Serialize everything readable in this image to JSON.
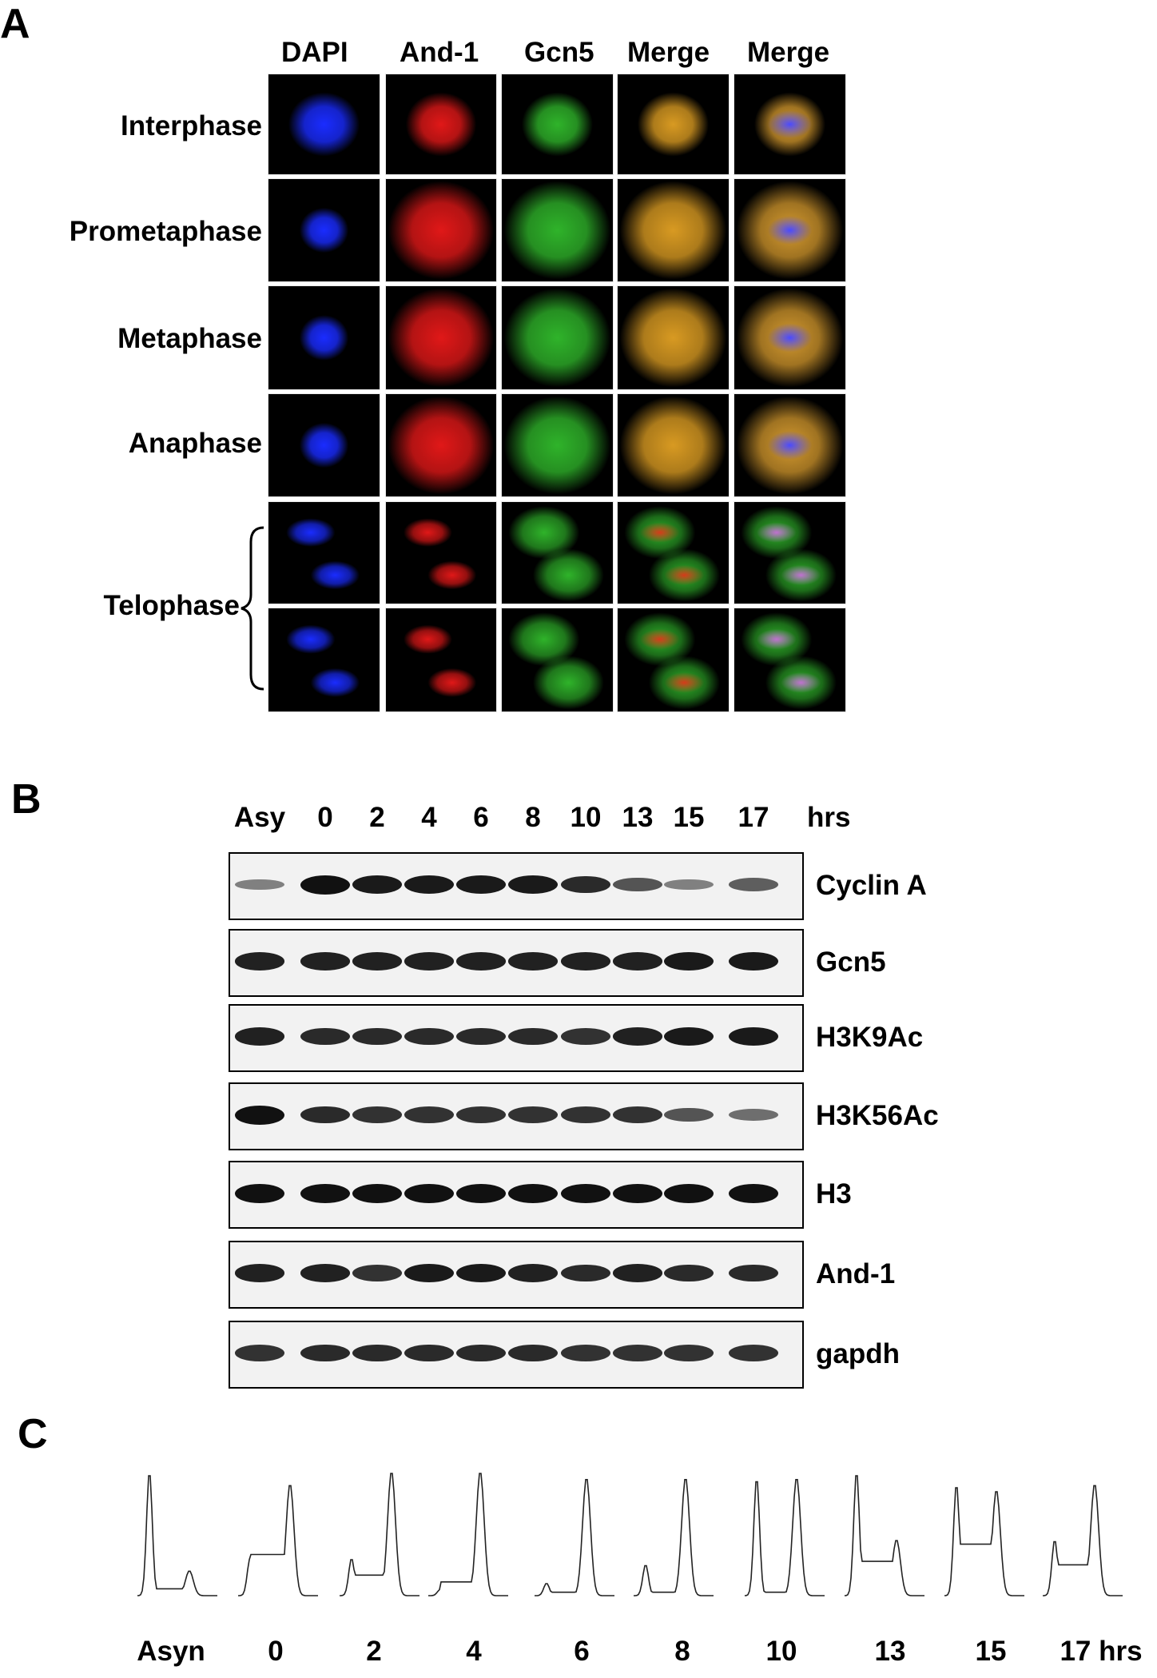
{
  "panels": {
    "a": "A",
    "b": "B",
    "c": "C"
  },
  "panel_a": {
    "columns": [
      "DAPI",
      "And-1",
      "Gcn5",
      "Merge",
      "Merge"
    ],
    "rows": [
      "Interphase",
      "Prometaphase",
      "Metaphase",
      "Anaphase"
    ],
    "telophase_label": "Telophase",
    "channel_colors": {
      "dapi": "#1a2cff",
      "and1": "#e01818",
      "gcn5": "#2fb32a",
      "merge": "#d89a22",
      "merge_dapi": "#b890d8"
    }
  },
  "panel_b": {
    "timepoints": [
      "Asy",
      "0",
      "2",
      "4",
      "6",
      "8",
      "10",
      "13",
      "15",
      "17"
    ],
    "unit": "hrs",
    "blots": [
      {
        "name": "Cyclin A",
        "intensity": [
          0.35,
          1.0,
          0.95,
          0.95,
          0.95,
          0.95,
          0.85,
          0.6,
          0.35,
          0.55
        ]
      },
      {
        "name": "Gcn5",
        "intensity": [
          0.9,
          0.9,
          0.9,
          0.9,
          0.9,
          0.9,
          0.9,
          0.9,
          0.95,
          0.95
        ]
      },
      {
        "name": "H3K9Ac",
        "intensity": [
          0.9,
          0.85,
          0.85,
          0.85,
          0.85,
          0.85,
          0.8,
          0.9,
          0.95,
          0.95
        ]
      },
      {
        "name": "H3K56Ac",
        "intensity": [
          1.0,
          0.85,
          0.8,
          0.8,
          0.8,
          0.8,
          0.8,
          0.8,
          0.6,
          0.45
        ]
      },
      {
        "name": "H3",
        "intensity": [
          1.0,
          1.0,
          1.0,
          1.0,
          1.0,
          1.0,
          1.0,
          1.0,
          1.0,
          1.0
        ]
      },
      {
        "name": "And-1",
        "intensity": [
          0.9,
          0.9,
          0.8,
          0.95,
          0.95,
          0.9,
          0.85,
          0.9,
          0.85,
          0.85
        ]
      },
      {
        "name": "gapdh",
        "intensity": [
          0.8,
          0.85,
          0.85,
          0.85,
          0.85,
          0.85,
          0.8,
          0.8,
          0.8,
          0.8
        ]
      }
    ]
  },
  "panel_c": {
    "labels": [
      "Asyn",
      "0",
      "2",
      "4",
      "6",
      "8",
      "10",
      "13",
      "15",
      "17 hrs"
    ]
  }
}
